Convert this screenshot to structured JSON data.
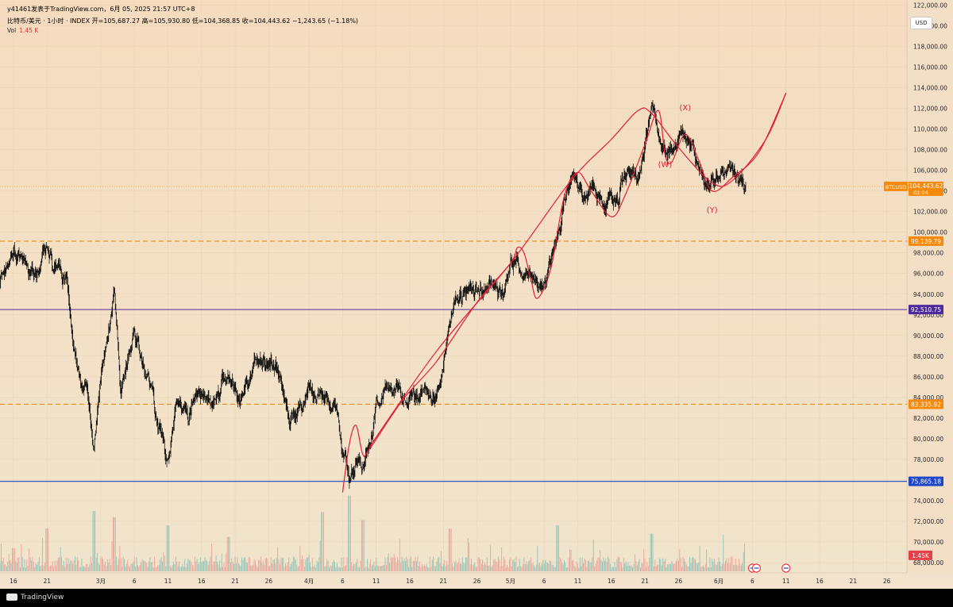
{
  "header": {
    "title_line": "y41461发表于TradingView.com，6月 05, 2025 21:57 UTC+8",
    "ohlc_line": "比特币/美元 · 1小时 · INDEX  开=105,687.27  高=105,930.80  低=104,368.85  收=104,443.62  −1,243.65 (−1.18%)",
    "vol_label": "Vol",
    "vol_value": "1.45 K"
  },
  "currency_button": "USD",
  "footer": {
    "brand": "TradingView"
  },
  "colors": {
    "background_top": "#f5dcbf",
    "background_bottom": "#f1e4cc",
    "candle": "#000000",
    "wave": "#e01f38",
    "orange_level": "#f5890c",
    "purple_level": "#4f2a9c",
    "blue_level": "#1d47c6",
    "vol_up": "#6dbbb0",
    "vol_down": "#ee8e8a"
  },
  "chart_data": {
    "type": "line",
    "symbol": "BTCUSD",
    "interval": "1小时",
    "y_axis": {
      "ylim": [
        67000,
        122500
      ],
      "ticks": [
        68000,
        70000,
        72000,
        74000,
        76000,
        78000,
        80000,
        82000,
        84000,
        86000,
        88000,
        90000,
        92000,
        94000,
        96000,
        98000,
        100000,
        102000,
        104000,
        106000,
        108000,
        110000,
        112000,
        114000,
        116000,
        118000,
        120000,
        122000
      ],
      "tick_labels": [
        "68,000.00",
        "70,000.00",
        "72,000.00",
        "74,000.00",
        "76,000.00",
        "78,000.00",
        "80,000.00",
        "82,000.00",
        "84,000.00",
        "86,000.00",
        "88,000.00",
        "90,000.00",
        "92,000.00",
        "94,000.00",
        "96,000.00",
        "98,000.00",
        "100,000.00",
        "102,000.00",
        "104,000.00",
        "106,000.00",
        "108,000.00",
        "110,000.00",
        "112,000.00",
        "114,000.00",
        "116,000.00",
        "118,000.00",
        "120,000.00",
        "122,000.00"
      ]
    },
    "x_axis": {
      "xlim": [
        "2025-02-14",
        "2025-06-29"
      ],
      "ticks": [
        "2025-02-16",
        "2025-02-21",
        "2025-03-01",
        "2025-03-06",
        "2025-03-11",
        "2025-03-16",
        "2025-03-21",
        "2025-03-26",
        "2025-04-01",
        "2025-04-06",
        "2025-04-11",
        "2025-04-16",
        "2025-04-21",
        "2025-04-26",
        "2025-05-01",
        "2025-05-06",
        "2025-05-11",
        "2025-05-16",
        "2025-05-21",
        "2025-05-26",
        "2025-06-01",
        "2025-06-06",
        "2025-06-11",
        "2025-06-16",
        "2025-06-21",
        "2025-06-26"
      ],
      "tick_labels": [
        "16",
        "21",
        "3月",
        "6",
        "11",
        "16",
        "21",
        "26",
        "4月",
        "6",
        "11",
        "16",
        "21",
        "26",
        "5月",
        "6",
        "11",
        "16",
        "21",
        "26",
        "6月",
        "6",
        "11",
        "16",
        "21",
        "26"
      ]
    },
    "series": [
      {
        "values": [
          [
            "2025-02-14",
            95500
          ],
          [
            "2025-02-16",
            97800
          ],
          [
            "2025-02-18",
            96300
          ],
          [
            "2025-02-19",
            95400
          ],
          [
            "2025-02-20",
            96700
          ],
          [
            "2025-02-21",
            98800
          ],
          [
            "2025-02-22",
            96500
          ],
          [
            "2025-02-23",
            96100
          ],
          [
            "2025-02-24",
            95000
          ],
          [
            "2025-02-25",
            88500
          ],
          [
            "2025-02-26",
            85500
          ],
          [
            "2025-02-27",
            84800
          ],
          [
            "2025-02-28",
            79500
          ],
          [
            "2025-03-01",
            85700
          ],
          [
            "2025-03-02",
            90000
          ],
          [
            "2025-03-03",
            94000
          ],
          [
            "2025-03-04",
            84000
          ],
          [
            "2025-03-05",
            87900
          ],
          [
            "2025-03-06",
            91000
          ],
          [
            "2025-03-07",
            88400
          ],
          [
            "2025-03-08",
            86100
          ],
          [
            "2025-03-09",
            83000
          ],
          [
            "2025-03-10",
            80200
          ],
          [
            "2025-03-11",
            77500
          ],
          [
            "2025-03-12",
            81800
          ],
          [
            "2025-03-13",
            83500
          ],
          [
            "2025-03-14",
            82300
          ],
          [
            "2025-03-15",
            84200
          ],
          [
            "2025-03-16",
            84000
          ],
          [
            "2025-03-17",
            83200
          ],
          [
            "2025-03-18",
            82800
          ],
          [
            "2025-03-19",
            85100
          ],
          [
            "2025-03-20",
            86000
          ],
          [
            "2025-03-21",
            84300
          ],
          [
            "2025-03-22",
            84000
          ],
          [
            "2025-03-23",
            85500
          ],
          [
            "2025-03-24",
            87500
          ],
          [
            "2025-03-25",
            87900
          ],
          [
            "2025-03-26",
            86500
          ],
          [
            "2025-03-27",
            87000
          ],
          [
            "2025-03-28",
            84800
          ],
          [
            "2025-03-29",
            82300
          ],
          [
            "2025-03-30",
            82500
          ],
          [
            "2025-03-31",
            82400
          ],
          [
            "2025-04-01",
            84500
          ],
          [
            "2025-04-02",
            84000
          ],
          [
            "2025-04-03",
            83500
          ],
          [
            "2025-04-04",
            83600
          ],
          [
            "2025-04-05",
            82800
          ],
          [
            "2025-04-06",
            78500
          ],
          [
            "2025-04-07",
            76200
          ],
          [
            "2025-04-08",
            77500
          ],
          [
            "2025-04-09",
            78000
          ],
          [
            "2025-04-10",
            80000
          ],
          [
            "2025-04-11",
            83000
          ],
          [
            "2025-04-12",
            84500
          ],
          [
            "2025-04-13",
            84300
          ],
          [
            "2025-04-14",
            85000
          ],
          [
            "2025-04-15",
            84000
          ],
          [
            "2025-04-16",
            83800
          ],
          [
            "2025-04-17",
            84500
          ],
          [
            "2025-04-18",
            84400
          ],
          [
            "2025-04-19",
            84800
          ],
          [
            "2025-04-20",
            85000
          ],
          [
            "2025-04-21",
            87500
          ],
          [
            "2025-04-22",
            91500
          ],
          [
            "2025-04-23",
            94000
          ],
          [
            "2025-04-24",
            93500
          ],
          [
            "2025-04-25",
            95000
          ],
          [
            "2025-04-26",
            94500
          ],
          [
            "2025-04-27",
            94200
          ],
          [
            "2025-04-28",
            94900
          ],
          [
            "2025-04-29",
            94500
          ],
          [
            "2025-04-30",
            94200
          ],
          [
            "2025-05-01",
            96600
          ],
          [
            "2025-05-02",
            97000
          ],
          [
            "2025-05-03",
            96000
          ],
          [
            "2025-05-04",
            95300
          ],
          [
            "2025-05-05",
            94500
          ],
          [
            "2025-05-06",
            94800
          ],
          [
            "2025-05-07",
            96800
          ],
          [
            "2025-05-08",
            100000
          ],
          [
            "2025-05-09",
            103000
          ],
          [
            "2025-05-10",
            104000
          ],
          [
            "2025-05-11",
            104000
          ],
          [
            "2025-05-12",
            103000
          ],
          [
            "2025-05-13",
            104000
          ],
          [
            "2025-05-14",
            103500
          ],
          [
            "2025-05-15",
            102500
          ],
          [
            "2025-05-16",
            103500
          ],
          [
            "2025-05-17",
            103200
          ],
          [
            "2025-05-18",
            106000
          ],
          [
            "2025-05-19",
            105500
          ],
          [
            "2025-05-20",
            106500
          ],
          [
            "2025-05-21",
            109000
          ],
          [
            "2025-05-22",
            111500
          ],
          [
            "2025-05-23",
            109000
          ],
          [
            "2025-05-24",
            108500
          ],
          [
            "2025-05-25",
            107800
          ],
          [
            "2025-05-26",
            109500
          ],
          [
            "2025-05-27",
            109000
          ],
          [
            "2025-05-28",
            108000
          ],
          [
            "2025-05-29",
            106500
          ],
          [
            "2025-05-30",
            104300
          ],
          [
            "2025-05-31",
            104200
          ],
          [
            "2025-06-01",
            105200
          ],
          [
            "2025-06-02",
            105500
          ],
          [
            "2025-06-03",
            105800
          ],
          [
            "2025-06-04",
            104900
          ],
          [
            "2025-06-05",
            104444
          ]
        ]
      }
    ],
    "volume": {
      "label": "Vol",
      "last": "1.45K",
      "values": [
        [
          "2025-02-16",
          69400
        ],
        [
          "2025-02-21",
          71300
        ],
        [
          "2025-02-28",
          73000
        ],
        [
          "2025-03-03",
          72400
        ],
        [
          "2025-03-11",
          71600
        ],
        [
          "2025-03-20",
          70500
        ],
        [
          "2025-04-03",
          72900
        ],
        [
          "2025-04-07",
          74500
        ],
        [
          "2025-04-09",
          72100
        ],
        [
          "2025-04-22",
          71300
        ],
        [
          "2025-05-08",
          71600
        ],
        [
          "2025-05-22",
          70800
        ],
        [
          "2025-06-05",
          69800
        ]
      ]
    },
    "horizontal_levels": [
      {
        "value": 99139.79,
        "label": "99,139.79",
        "style": "dashed",
        "color": "#f5890c"
      },
      {
        "value": 92510.75,
        "label": "92,510.75",
        "style": "solid",
        "color": "#4f2a9c"
      },
      {
        "value": 83335.92,
        "label": "83,335.92",
        "style": "dashed",
        "color": "#f5890c"
      },
      {
        "value": 75865.18,
        "label": "75,865.18",
        "style": "solid",
        "color": "#1d47c6"
      }
    ],
    "last_price": {
      "symbol": "BTCUSD",
      "value": "104,443.62",
      "countdown": "02:04"
    },
    "volume_badge": "1.45K",
    "wave_annotations": [
      {
        "label": "(W)",
        "date": "2025-05-24",
        "price": 106300
      },
      {
        "label": "(X)",
        "date": "2025-05-27",
        "price": 111800
      },
      {
        "label": "(Y)",
        "date": "2025-05-31",
        "price": 101900
      }
    ],
    "wave_path": [
      [
        "2025-04-06",
        74800
      ],
      [
        "2025-04-07",
        79500
      ],
      [
        "2025-04-08",
        81300
      ],
      [
        "2025-04-09",
        78500
      ],
      [
        "2025-04-10",
        79000
      ],
      [
        "2025-04-15",
        83800
      ],
      [
        "2025-04-20",
        87500
      ],
      [
        "2025-04-26",
        93200
      ],
      [
        "2025-05-01",
        97000
      ],
      [
        "2025-05-02",
        98500
      ],
      [
        "2025-05-03",
        98000
      ],
      [
        "2025-05-04",
        95500
      ],
      [
        "2025-05-05",
        93600
      ],
      [
        "2025-05-07",
        96500
      ],
      [
        "2025-05-09",
        103500
      ],
      [
        "2025-05-11",
        105800
      ],
      [
        "2025-05-13",
        104000
      ],
      [
        "2025-05-16",
        101500
      ],
      [
        "2025-05-18",
        103500
      ],
      [
        "2025-05-21",
        108500
      ],
      [
        "2025-05-23",
        111800
      ],
      [
        "2025-05-24",
        107500
      ],
      [
        "2025-05-25",
        106800
      ],
      [
        "2025-05-27",
        109500
      ],
      [
        "2025-05-29",
        107000
      ],
      [
        "2025-05-31",
        104000
      ],
      [
        "2025-06-03",
        105300
      ],
      [
        "2025-06-07",
        107800
      ],
      [
        "2025-06-11",
        113500
      ]
    ],
    "channel_path": [
      [
        "2025-04-10",
        79200
      ],
      [
        "2025-04-20",
        88500
      ],
      [
        "2025-05-01",
        97000
      ],
      [
        "2025-05-10",
        105000
      ],
      [
        "2025-05-16",
        109000
      ],
      [
        "2025-05-20",
        111800
      ],
      [
        "2025-05-22",
        111500
      ],
      [
        "2025-05-26",
        108200
      ],
      [
        "2025-05-31",
        104800
      ],
      [
        "2025-06-03",
        105000
      ],
      [
        "2025-06-08",
        109000
      ],
      [
        "2025-06-11",
        113500
      ]
    ]
  }
}
